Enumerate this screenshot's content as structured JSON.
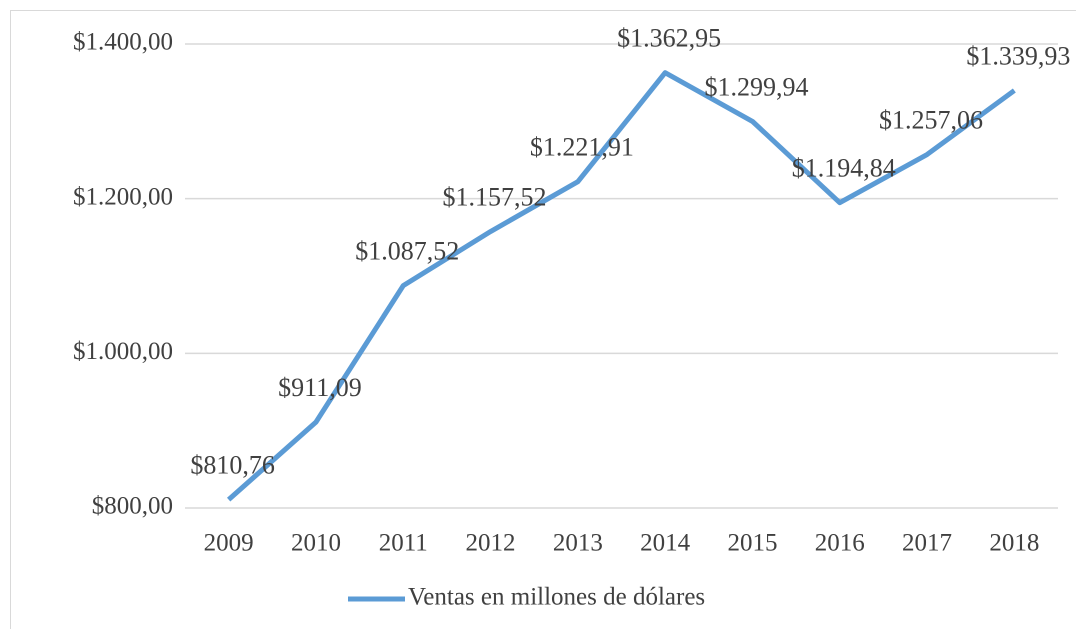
{
  "chart_data": {
    "type": "line",
    "categories": [
      "2009",
      "2010",
      "2011",
      "2012",
      "2013",
      "2014",
      "2015",
      "2016",
      "2017",
      "2018"
    ],
    "series": [
      {
        "name": "Ventas en millones de dólares",
        "color": "#5b9bd5",
        "values": [
          810.76,
          911.09,
          1087.52,
          1157.52,
          1221.91,
          1362.95,
          1299.94,
          1194.84,
          1257.06,
          1339.93
        ],
        "value_labels": [
          "$810,76",
          "$911,09",
          "$1.087,52",
          "$1.157,52",
          "$1.221,91",
          "$1.362,95",
          "$1.299,94",
          "$1.194,84",
          "$1.257,06",
          "$1.339,93"
        ]
      }
    ],
    "ylim": [
      800,
      1400
    ],
    "yticks": [
      {
        "value": 800,
        "label": "$800,00"
      },
      {
        "value": 1000,
        "label": "$1.000,00"
      },
      {
        "value": 1200,
        "label": "$1.200,00"
      },
      {
        "value": 1400,
        "label": "$1.400,00"
      }
    ],
    "grid": true,
    "legend": "bottom"
  }
}
